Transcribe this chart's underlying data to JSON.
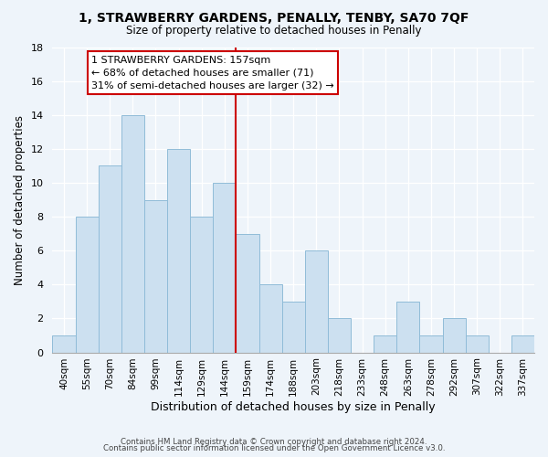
{
  "title": "1, STRAWBERRY GARDENS, PENALLY, TENBY, SA70 7QF",
  "subtitle": "Size of property relative to detached houses in Penally",
  "xlabel": "Distribution of detached houses by size in Penally",
  "ylabel": "Number of detached properties",
  "bar_labels": [
    "40sqm",
    "55sqm",
    "70sqm",
    "84sqm",
    "99sqm",
    "114sqm",
    "129sqm",
    "144sqm",
    "159sqm",
    "174sqm",
    "188sqm",
    "203sqm",
    "218sqm",
    "233sqm",
    "248sqm",
    "263sqm",
    "278sqm",
    "292sqm",
    "307sqm",
    "322sqm",
    "337sqm"
  ],
  "bar_values": [
    1,
    8,
    11,
    14,
    9,
    12,
    8,
    10,
    7,
    4,
    3,
    6,
    2,
    0,
    1,
    3,
    1,
    2,
    1,
    0,
    1
  ],
  "bar_color": "#cce0f0",
  "bar_edge_color": "#90bcd8",
  "vline_index": 8,
  "vline_color": "#cc0000",
  "annotation_title": "1 STRAWBERRY GARDENS: 157sqm",
  "annotation_line1": "← 68% of detached houses are smaller (71)",
  "annotation_line2": "31% of semi-detached houses are larger (32) →",
  "annotation_box_color": "#ffffff",
  "annotation_box_edge": "#cc0000",
  "ylim": [
    0,
    18
  ],
  "yticks": [
    0,
    2,
    4,
    6,
    8,
    10,
    12,
    14,
    16,
    18
  ],
  "footer1": "Contains HM Land Registry data © Crown copyright and database right 2024.",
  "footer2": "Contains public sector information licensed under the Open Government Licence v3.0.",
  "bg_color": "#eef4fa"
}
